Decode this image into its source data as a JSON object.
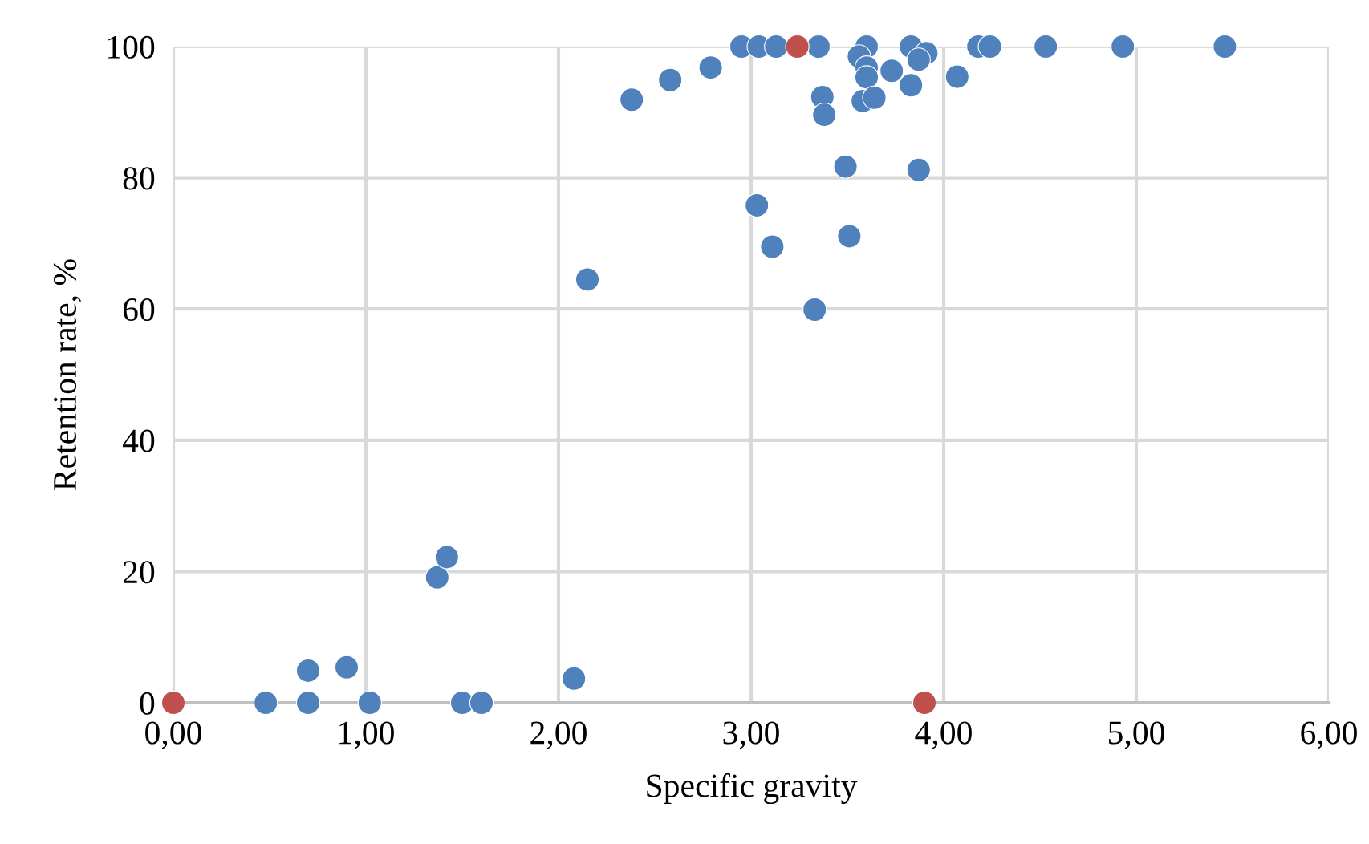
{
  "chart_data": {
    "type": "scatter",
    "xlabel": "Specific gravity",
    "ylabel": "Retention rate, %",
    "xlim": [
      0,
      6
    ],
    "ylim": [
      0,
      100
    ],
    "xticks": [
      {
        "value": 0,
        "label": "0,00"
      },
      {
        "value": 1,
        "label": "1,00"
      },
      {
        "value": 2,
        "label": "2,00"
      },
      {
        "value": 3,
        "label": "3,00"
      },
      {
        "value": 4,
        "label": "4,00"
      },
      {
        "value": 5,
        "label": "5,00"
      },
      {
        "value": 6,
        "label": "6,00"
      }
    ],
    "yticks": [
      0,
      20,
      40,
      60,
      80,
      100
    ],
    "grid": true,
    "legend": false,
    "marker": "circle",
    "series": [
      {
        "color": "#4f81bd",
        "x": [
          0.48,
          0.7,
          0.7,
          0.9,
          1.02,
          1.37,
          1.42,
          1.5,
          1.6,
          2.08,
          2.15,
          2.38,
          2.58,
          2.79,
          2.95,
          3.04,
          3.13,
          3.35,
          3.03,
          3.11,
          3.37,
          3.38,
          3.49,
          3.51,
          3.33,
          3.87,
          3.6,
          3.56,
          3.6,
          3.6,
          3.73,
          3.83,
          3.91,
          3.87,
          3.83,
          4.07,
          3.58,
          3.64,
          4.18,
          4.24,
          4.53,
          4.93,
          5.46
        ],
        "values": [
          0,
          4.9,
          0,
          5.4,
          0,
          19.1,
          22.2,
          0,
          0,
          3.7,
          64.5,
          91.9,
          94.9,
          96.8,
          100,
          100,
          100,
          100,
          75.8,
          69.5,
          92.3,
          89.6,
          81.7,
          71.1,
          59.9,
          81.2,
          100,
          98.5,
          96.8,
          95.3,
          96.3,
          100,
          99,
          98,
          94.1,
          95.4,
          91.7,
          92.2,
          100,
          100,
          100,
          100,
          100
        ]
      },
      {
        "color": "#c0504d",
        "x": [
          0,
          3.24,
          3.9
        ],
        "values": [
          0,
          100,
          0
        ]
      }
    ]
  }
}
